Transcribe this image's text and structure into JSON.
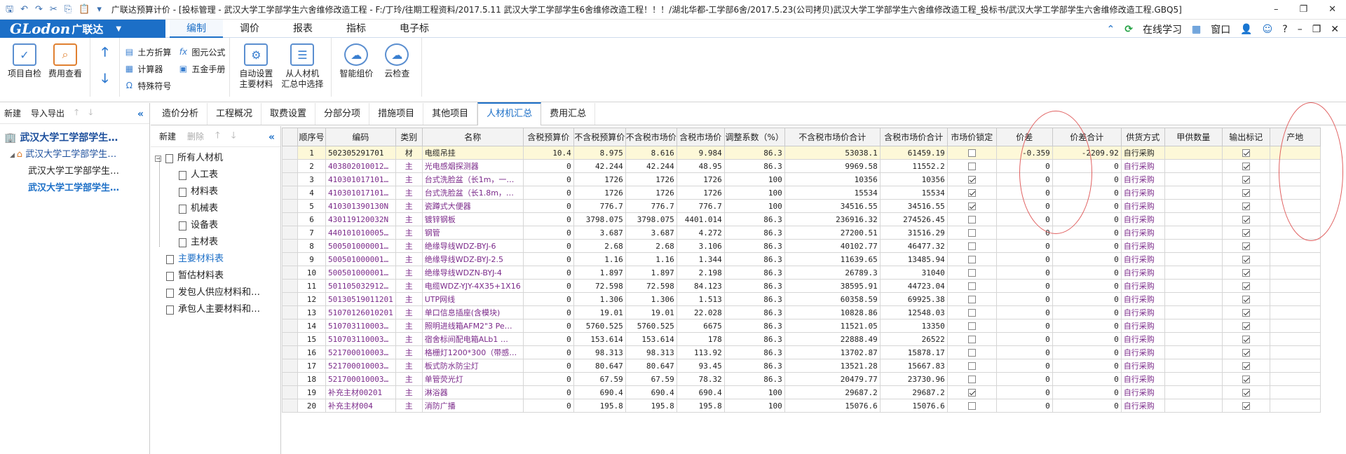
{
  "app": {
    "title": "广联达预算计价 - [投标管理 - 武汉大学工学部学生六舍维修改造工程 - F:/丁玲/往期工程资料/2017.5.11 武汉大学工学部学生6舍维修改造工程！！！/湖北华都-工学部6舍/2017.5.23(公司拷贝)武汉大学工学部学生六舍维修改造工程_投标书/武汉大学工学部学生六舍维修改造工程.GBQ5]"
  },
  "logo": {
    "text": "GLodon",
    "cn": "广联达"
  },
  "menu": {
    "items": [
      "编制",
      "调价",
      "报表",
      "指标",
      "电子标"
    ],
    "active": 0,
    "online": "在线学习",
    "window": "窗口"
  },
  "ribbon": {
    "project_check": "项目自检",
    "fee_view": "费用查看",
    "earthwork": "土方折算",
    "calculator": "计算器",
    "special_symbol": "特殊符号",
    "formula": "图元公式",
    "hardware": "五金手册",
    "auto_set_1": "自动设置",
    "auto_set_2": "主要材料",
    "select_1": "从人材机",
    "select_2": "汇总中选择",
    "smart_price": "智能组价",
    "cloud_check": "云检查"
  },
  "leftnav": {
    "new": "新建",
    "import_export": "导入导出",
    "root": "武汉大学工学部学生…",
    "l1": "武汉大学工学部学生…",
    "items": [
      "武汉大学工学部学生…",
      "武汉大学工学部学生…"
    ]
  },
  "tabs": [
    "造价分析",
    "工程概况",
    "取费设置",
    "分部分项",
    "措施项目",
    "其他项目",
    "人材机汇总",
    "费用汇总"
  ],
  "subpanel": {
    "new": "新建",
    "delete": "删除",
    "root": "所有人材机",
    "children": [
      "人工表",
      "材料表",
      "机械表",
      "设备表",
      "主材表"
    ],
    "others": [
      "主要材料表",
      "暂估材料表",
      "发包人供应材料和…",
      "承包人主要材料和…"
    ]
  },
  "grid": {
    "headers": [
      "",
      "顺序号",
      "编码",
      "类别",
      "名称",
      "含税预算价",
      "不含税预算价",
      "不含税市场价",
      "含税市场价",
      "调整系数（%）",
      "不含税市场价合计",
      "含税市场价合计",
      "市场价锁定",
      "价差",
      "价差合计",
      "供货方式",
      "甲供数量",
      "输出标记",
      "产地"
    ],
    "rows": [
      {
        "n": "1",
        "code": "502305291701",
        "cat": "材",
        "name": "电缆吊挂",
        "tb": "10.4",
        "ntb": "8.975",
        "ntm": "8.616",
        "tm": "9.984",
        "adj": "86.3",
        "ntmt": "53038.1",
        "tmt": "61459.19",
        "lock": false,
        "diff": "-0.359",
        "difft": "-2209.92",
        "supply": "自行采购",
        "out": true
      },
      {
        "n": "2",
        "code": "403802010012…",
        "cat": "主",
        "name": "光电感烟探测器",
        "tb": "0",
        "ntb": "42.244",
        "ntm": "42.244",
        "tm": "48.95",
        "adj": "86.3",
        "ntmt": "9969.58",
        "tmt": "11552.2",
        "lock": false,
        "diff": "0",
        "difft": "0",
        "supply": "自行采购",
        "out": true
      },
      {
        "n": "3",
        "code": "410301017101…",
        "cat": "主",
        "name": "台式洗脸盆（长1m，一…",
        "tb": "0",
        "ntb": "1726",
        "ntm": "1726",
        "tm": "1726",
        "adj": "100",
        "ntmt": "10356",
        "tmt": "10356",
        "lock": true,
        "diff": "0",
        "difft": "0",
        "supply": "自行采购",
        "out": true
      },
      {
        "n": "4",
        "code": "410301017101…",
        "cat": "主",
        "name": "台式洗脸盆（长1.8m，…",
        "tb": "0",
        "ntb": "1726",
        "ntm": "1726",
        "tm": "1726",
        "adj": "100",
        "ntmt": "15534",
        "tmt": "15534",
        "lock": true,
        "diff": "0",
        "difft": "0",
        "supply": "自行采购",
        "out": true
      },
      {
        "n": "5",
        "code": "410301390130N",
        "cat": "主",
        "name": "瓷蹲式大便器",
        "tb": "0",
        "ntb": "776.7",
        "ntm": "776.7",
        "tm": "776.7",
        "adj": "100",
        "ntmt": "34516.55",
        "tmt": "34516.55",
        "lock": true,
        "diff": "0",
        "difft": "0",
        "supply": "自行采购",
        "out": true
      },
      {
        "n": "6",
        "code": "430119120032N",
        "cat": "主",
        "name": "镀锌钢板",
        "tb": "0",
        "ntb": "3798.075",
        "ntm": "3798.075",
        "tm": "4401.014",
        "adj": "86.3",
        "ntmt": "236916.32",
        "tmt": "274526.45",
        "lock": false,
        "diff": "0",
        "difft": "0",
        "supply": "自行采购",
        "out": true
      },
      {
        "n": "7",
        "code": "440101010005…",
        "cat": "主",
        "name": "钢管",
        "tb": "0",
        "ntb": "3.687",
        "ntm": "3.687",
        "tm": "4.272",
        "adj": "86.3",
        "ntmt": "27200.51",
        "tmt": "31516.29",
        "lock": false,
        "diff": "0",
        "difft": "0",
        "supply": "自行采购",
        "out": true
      },
      {
        "n": "8",
        "code": "500501000001…",
        "cat": "主",
        "name": "绝缘导线WDZ-BYJ-6",
        "tb": "0",
        "ntb": "2.68",
        "ntm": "2.68",
        "tm": "3.106",
        "adj": "86.3",
        "ntmt": "40102.77",
        "tmt": "46477.32",
        "lock": false,
        "diff": "0",
        "difft": "0",
        "supply": "自行采购",
        "out": true
      },
      {
        "n": "9",
        "code": "500501000001…",
        "cat": "主",
        "name": "绝缘导线WDZ-BYJ-2.5",
        "tb": "0",
        "ntb": "1.16",
        "ntm": "1.16",
        "tm": "1.344",
        "adj": "86.3",
        "ntmt": "11639.65",
        "tmt": "13485.94",
        "lock": false,
        "diff": "0",
        "difft": "0",
        "supply": "自行采购",
        "out": true
      },
      {
        "n": "10",
        "code": "500501000001…",
        "cat": "主",
        "name": "绝缘导线WDZN-BYJ-4",
        "tb": "0",
        "ntb": "1.897",
        "ntm": "1.897",
        "tm": "2.198",
        "adj": "86.3",
        "ntmt": "26789.3",
        "tmt": "31040",
        "lock": false,
        "diff": "0",
        "difft": "0",
        "supply": "自行采购",
        "out": true
      },
      {
        "n": "11",
        "code": "501105032912…",
        "cat": "主",
        "name": "电缆WDZ-YJY-4X35+1X16",
        "tb": "0",
        "ntb": "72.598",
        "ntm": "72.598",
        "tm": "84.123",
        "adj": "86.3",
        "ntmt": "38595.91",
        "tmt": "44723.04",
        "lock": false,
        "diff": "0",
        "difft": "0",
        "supply": "自行采购",
        "out": true
      },
      {
        "n": "12",
        "code": "501305190112​01",
        "cat": "主",
        "name": "UTP网线",
        "tb": "0",
        "ntb": "1.306",
        "ntm": "1.306",
        "tm": "1.513",
        "adj": "86.3",
        "ntmt": "60358.59",
        "tmt": "69925.38",
        "lock": false,
        "diff": "0",
        "difft": "0",
        "supply": "自行采购",
        "out": true
      },
      {
        "n": "13",
        "code": "510701260102​01",
        "cat": "主",
        "name": "单口信息插座(含模块)",
        "tb": "0",
        "ntb": "19.01",
        "ntm": "19.01",
        "tm": "22.028",
        "adj": "86.3",
        "ntmt": "10828.86",
        "tmt": "12548.03",
        "lock": false,
        "diff": "0",
        "difft": "0",
        "supply": "自行采购",
        "out": true
      },
      {
        "n": "14",
        "code": "510703110003…",
        "cat": "主",
        "name": "照明进线箱AFM2\"3  Pe…",
        "tb": "0",
        "ntb": "5760.525",
        "ntm": "5760.525",
        "tm": "6675",
        "adj": "86.3",
        "ntmt": "11521.05",
        "tmt": "13350",
        "lock": false,
        "diff": "0",
        "difft": "0",
        "supply": "自行采购",
        "out": true
      },
      {
        "n": "15",
        "code": "510703110003…",
        "cat": "主",
        "name": "宿舍标间配电箱ALb1  …",
        "tb": "0",
        "ntb": "153.614",
        "ntm": "153.614",
        "tm": "178",
        "adj": "86.3",
        "ntmt": "22888.49",
        "tmt": "26522",
        "lock": false,
        "diff": "0",
        "difft": "0",
        "supply": "自行采购",
        "out": true
      },
      {
        "n": "16",
        "code": "521700010003…",
        "cat": "主",
        "name": "格栅灯1200*300（带感…",
        "tb": "0",
        "ntb": "98.313",
        "ntm": "98.313",
        "tm": "113.92",
        "adj": "86.3",
        "ntmt": "13702.87",
        "tmt": "15878.17",
        "lock": false,
        "diff": "0",
        "difft": "0",
        "supply": "自行采购",
        "out": true
      },
      {
        "n": "17",
        "code": "521700010003…",
        "cat": "主",
        "name": "板式防水防尘灯",
        "tb": "0",
        "ntb": "80.647",
        "ntm": "80.647",
        "tm": "93.45",
        "adj": "86.3",
        "ntmt": "13521.28",
        "tmt": "15667.83",
        "lock": false,
        "diff": "0",
        "difft": "0",
        "supply": "自行采购",
        "out": true
      },
      {
        "n": "18",
        "code": "521700010003…",
        "cat": "主",
        "name": "单管荧光灯",
        "tb": "0",
        "ntb": "67.59",
        "ntm": "67.59",
        "tm": "78.32",
        "adj": "86.3",
        "ntmt": "20479.77",
        "tmt": "23730.96",
        "lock": false,
        "diff": "0",
        "difft": "0",
        "supply": "自行采购",
        "out": true
      },
      {
        "n": "19",
        "code": "补充主材00201",
        "cat": "主",
        "name": "淋浴器",
        "tb": "0",
        "ntb": "690.4",
        "ntm": "690.4",
        "tm": "690.4",
        "adj": "100",
        "ntmt": "29687.2",
        "tmt": "29687.2",
        "lock": true,
        "diff": "0",
        "difft": "0",
        "supply": "自行采购",
        "out": true
      },
      {
        "n": "20",
        "code": "补充主材004",
        "cat": "主",
        "name": "消防广播",
        "tb": "0",
        "ntb": "195.8",
        "ntm": "195.8",
        "tm": "195.8",
        "adj": "100",
        "ntmt": "15076.6",
        "tmt": "15076.6",
        "lock": false,
        "diff": "0",
        "difft": "0",
        "supply": "自行采购",
        "out": true
      }
    ]
  }
}
